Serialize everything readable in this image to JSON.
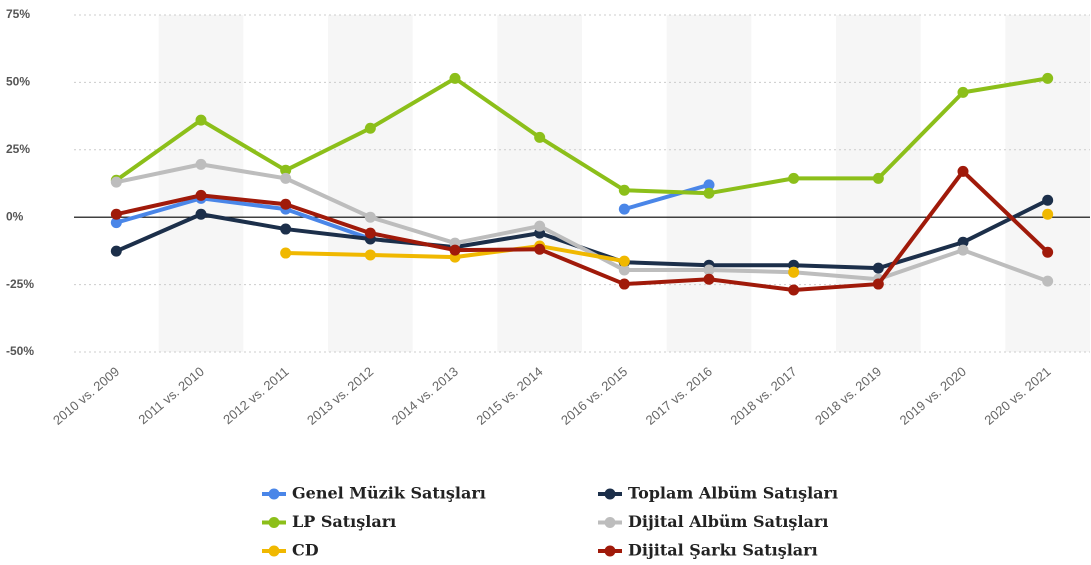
{
  "chart_data": {
    "type": "line",
    "categories": [
      "2010 vs. 2009",
      "2011 vs. 2010",
      "2012 vs. 2011",
      "2013 vs. 2012",
      "2014 vs. 2013",
      "2015 vs. 2014",
      "2016 vs. 2015",
      "2017 vs. 2016",
      "2018 vs. 2017",
      "2018 vs. 2019",
      "2019 vs. 2020",
      "2020 vs. 2021"
    ],
    "series": [
      {
        "name": "Genel Müzik Satışları",
        "color": "#4a86e8",
        "values": [
          -2,
          7,
          3,
          -8,
          null,
          null,
          3,
          12,
          null,
          null,
          null,
          null
        ]
      },
      {
        "name": "Toplam Albüm Satışları",
        "color": "#1c2f4a",
        "values": [
          -12.6,
          1.1,
          -4.4,
          -8.1,
          -11.1,
          -5.9,
          -16.7,
          -17.8,
          -17.8,
          -18.9,
          -9.3,
          6.3
        ]
      },
      {
        "name": "LP Satışları",
        "color": "#8cbf1a",
        "values": [
          13.7,
          36,
          17.4,
          33,
          51.5,
          29.6,
          10,
          8.9,
          14.4,
          14.4,
          46.3,
          51.5
        ]
      },
      {
        "name": "Dijital Albüm Satışları",
        "color": "#bdbdbd",
        "values": [
          13,
          19.6,
          14.4,
          0,
          -9.6,
          -3.3,
          -19.6,
          -19.6,
          -20.4,
          -23,
          -12.2,
          -23.7
        ]
      },
      {
        "name": "CD",
        "color": "#f0b800",
        "values": [
          null,
          null,
          -13.3,
          -14,
          -14.8,
          -10.7,
          -16.3,
          null,
          -20.4,
          null,
          null,
          1.1
        ]
      },
      {
        "name": "Dijital Şarkı Satışları",
        "color": "#a01a0a",
        "values": [
          1.1,
          8.1,
          4.8,
          -5.9,
          -12.2,
          -11.9,
          -24.8,
          -23,
          -27,
          -24.8,
          17,
          -13
        ]
      }
    ],
    "ylim": [
      -50,
      75
    ],
    "yticks": [
      {
        "value": -50,
        "label": "-50%"
      },
      {
        "value": -25,
        "label": "-25%"
      },
      {
        "value": 0,
        "label": "0%"
      },
      {
        "value": 25,
        "label": "25%"
      },
      {
        "value": 50,
        "label": "50%"
      },
      {
        "value": 75,
        "label": "75%"
      }
    ],
    "grid": true
  }
}
